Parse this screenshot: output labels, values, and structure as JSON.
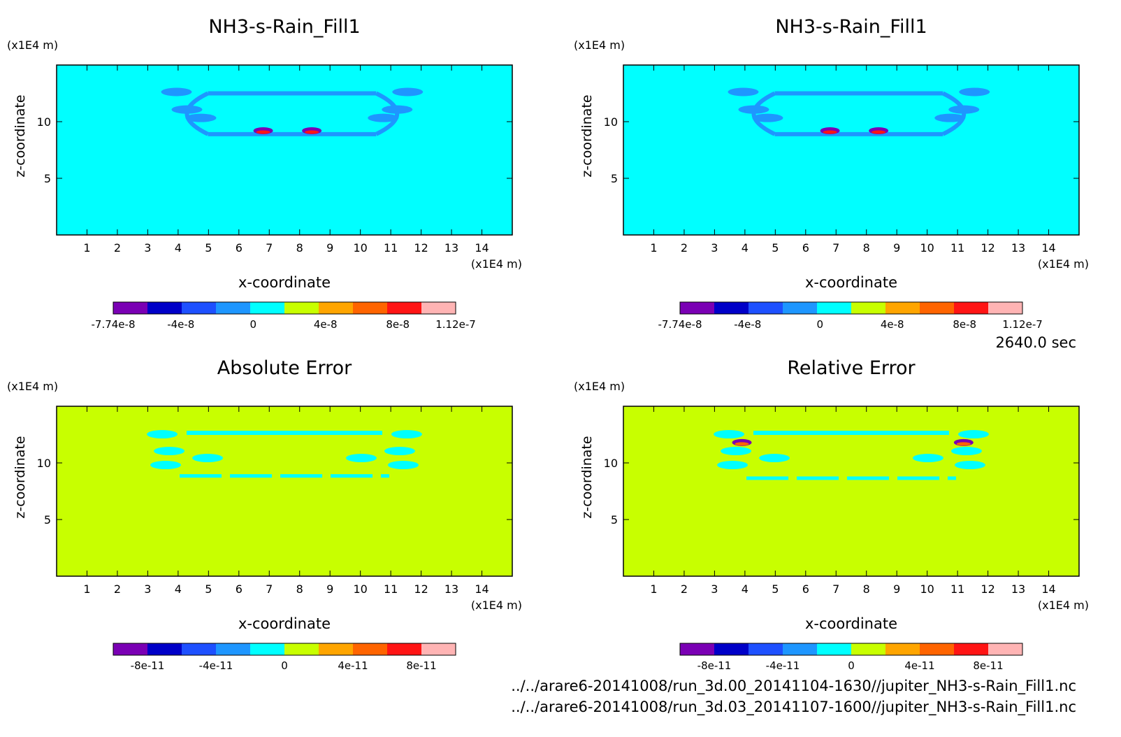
{
  "time_label": "2640.0 sec",
  "files": [
    "../../arare6-20141008/run_3d.00_20141104-1630//jupiter_NH3-s-Rain_Fill1.nc",
    "../../arare6-20141008/run_3d.03_20141107-1600//jupiter_NH3-s-Rain_Fill1.nc"
  ],
  "colors": {
    "palette": [
      "#7a00b4",
      "#0000c8",
      "#1e50ff",
      "#1e96ff",
      "#00ffff",
      "#c8ff00",
      "#ffa500",
      "#ff6400",
      "#ff1414",
      "#ffb4b4"
    ],
    "field_background": "#00f5ff",
    "error_background": "#d4ff00"
  },
  "chart_data": [
    {
      "type": "heatmap",
      "title": "NH3-s-Rain_Fill1",
      "xlabel": "x-coordinate",
      "ylabel": "z-coordinate",
      "x_unit": "(x1E4 m)",
      "y_unit": "(x1E4 m)",
      "xlim": [
        0,
        15
      ],
      "ylim": [
        0,
        15
      ],
      "x_ticks": [
        "1",
        "2",
        "3",
        "4",
        "5",
        "6",
        "7",
        "8",
        "9",
        "10",
        "11",
        "12",
        "13",
        "14"
      ],
      "y_ticks": [
        "5",
        "10"
      ],
      "colorbar_labels": [
        "-7.74e-8",
        "-4e-8",
        "0",
        "4e-8",
        "8e-8",
        "1.12e-7"
      ],
      "colorbar_range": [
        -7.74e-08,
        1.12e-07
      ],
      "background_value": 0,
      "features": [
        {
          "kind": "cloud-outline",
          "x": [
            3.6,
            11.9
          ],
          "z": [
            8.9,
            12.5
          ],
          "value": -1.5e-08
        },
        {
          "kind": "peak",
          "x": 6.8,
          "z": 9.2,
          "value": 1.12e-07
        },
        {
          "kind": "peak",
          "x": 8.4,
          "z": 9.2,
          "value": 1.12e-07
        }
      ]
    },
    {
      "type": "heatmap",
      "title": "NH3-s-Rain_Fill1",
      "xlabel": "x-coordinate",
      "ylabel": "z-coordinate",
      "x_unit": "(x1E4 m)",
      "y_unit": "(x1E4 m)",
      "xlim": [
        0,
        15
      ],
      "ylim": [
        0,
        15
      ],
      "x_ticks": [
        "1",
        "2",
        "3",
        "4",
        "5",
        "6",
        "7",
        "8",
        "9",
        "10",
        "11",
        "12",
        "13",
        "14"
      ],
      "y_ticks": [
        "5",
        "10"
      ],
      "colorbar_labels": [
        "-7.74e-8",
        "-4e-8",
        "0",
        "4e-8",
        "8e-8",
        "1.12e-7"
      ],
      "colorbar_range": [
        -7.74e-08,
        1.12e-07
      ],
      "background_value": 0,
      "features": [
        {
          "kind": "cloud-outline",
          "x": [
            3.6,
            11.9
          ],
          "z": [
            8.9,
            12.5
          ],
          "value": -1.5e-08
        },
        {
          "kind": "peak",
          "x": 6.8,
          "z": 9.2,
          "value": 1.12e-07
        },
        {
          "kind": "peak",
          "x": 8.4,
          "z": 9.2,
          "value": 1.12e-07
        }
      ]
    },
    {
      "type": "heatmap",
      "title": "Absolute Error",
      "xlabel": "x-coordinate",
      "ylabel": "z-coordinate",
      "x_unit": "(x1E4 m)",
      "y_unit": "(x1E4 m)",
      "xlim": [
        0,
        15
      ],
      "ylim": [
        0,
        15
      ],
      "x_ticks": [
        "1",
        "2",
        "3",
        "4",
        "5",
        "6",
        "7",
        "8",
        "9",
        "10",
        "11",
        "12",
        "13",
        "14"
      ],
      "y_ticks": [
        "5",
        "10"
      ],
      "colorbar_labels": [
        "-8e-11",
        "-4e-11",
        "0",
        "4e-11",
        "8e-11"
      ],
      "colorbar_range": [
        -1e-10,
        1e-10
      ],
      "background_value": 0,
      "features": [
        {
          "kind": "error-patches",
          "x": [
            2.9,
            12.1
          ],
          "z": [
            8.6,
            12.9
          ],
          "value": -1e-11
        }
      ]
    },
    {
      "type": "heatmap",
      "title": "Relative Error",
      "xlabel": "x-coordinate",
      "ylabel": "z-coordinate",
      "x_unit": "(x1E4 m)",
      "y_unit": "(x1E4 m)",
      "xlim": [
        0,
        15
      ],
      "ylim": [
        0,
        15
      ],
      "x_ticks": [
        "1",
        "2",
        "3",
        "4",
        "5",
        "6",
        "7",
        "8",
        "9",
        "10",
        "11",
        "12",
        "13",
        "14"
      ],
      "y_ticks": [
        "5",
        "10"
      ],
      "colorbar_labels": [
        "-8e-11",
        "-4e-11",
        "0",
        "4e-11",
        "8e-11"
      ],
      "colorbar_range": [
        -1e-10,
        1e-10
      ],
      "background_value": 0,
      "features": [
        {
          "kind": "error-patches",
          "x": [
            2.9,
            12.1
          ],
          "z": [
            8.4,
            12.9
          ],
          "value": -1e-11
        },
        {
          "kind": "peak",
          "x": 3.9,
          "z": 11.8,
          "value": 8e-11
        },
        {
          "kind": "peak",
          "x": 11.2,
          "z": 11.8,
          "value": 8e-11
        }
      ]
    }
  ]
}
